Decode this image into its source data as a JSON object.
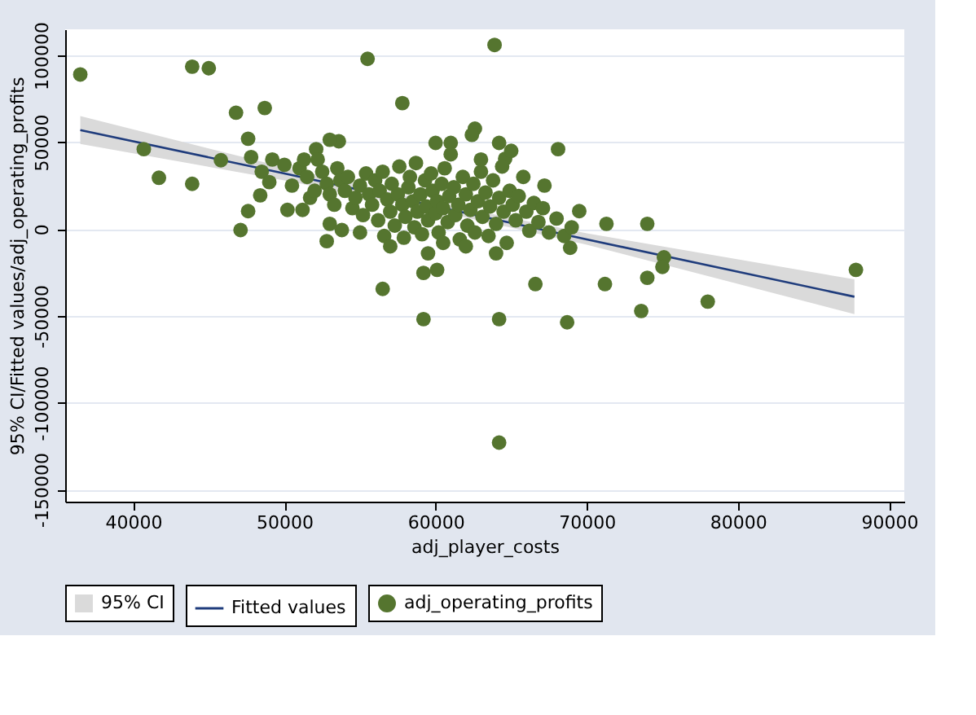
{
  "chart_data": {
    "type": "scatter",
    "xlabel": "adj_player_costs",
    "ylabel": "95% CI/Fitted values/adj_operating_profits",
    "xlim": [
      35500,
      91000
    ],
    "ylim": [
      -157000,
      115000
    ],
    "xticks": [
      40000,
      50000,
      60000,
      70000,
      80000,
      90000
    ],
    "yticks": [
      -150000,
      -100000,
      -50000,
      0,
      50000,
      100000
    ],
    "grid": "y",
    "legend": "bottom",
    "annotations": [
      "95% CI"
    ],
    "series": [
      {
        "name": "Fitted values",
        "type": "line",
        "color": "#1f3c7c",
        "x": [
          36500,
          50000,
          60000,
          70000,
          87700
        ],
        "values": [
          57000,
          32000,
          13000,
          -6000,
          -39000
        ],
        "lower": [
          49000,
          28000,
          10500,
          -9000,
          -49000
        ],
        "upper": [
          65000,
          35500,
          15300,
          -2500,
          -29000
        ]
      },
      {
        "name": "adj_operating_profits",
        "type": "scatter",
        "color": "#55752f",
        "marker": "circle",
        "x": [
          36500,
          43900,
          45000,
          55500,
          63900,
          40700,
          41700,
          43900,
          45800,
          46800,
          48700,
          57800,
          47600,
          47800,
          47100,
          47600,
          48400,
          52800,
          53800,
          56500,
          59200,
          59200,
          60100,
          64200,
          64200,
          68700,
          66600,
          71200,
          73600,
          74000,
          78000,
          87800,
          75100,
          75000,
          71300,
          74000,
          69500,
          68900,
          68100,
          64600,
          67200,
          62600,
          62400,
          64200,
          60000,
          61000,
          53600,
          52100,
          53000,
          48500,
          49000,
          49200,
          50000,
          50200,
          50500,
          51000,
          51200,
          51300,
          51500,
          51700,
          52000,
          52200,
          52500,
          52800,
          53000,
          53300,
          53500,
          53700,
          54000,
          54200,
          54500,
          54700,
          55000,
          55200,
          55400,
          55600,
          55800,
          56000,
          56200,
          56300,
          56500,
          56600,
          56800,
          57000,
          57100,
          57300,
          57500,
          57600,
          57800,
          57900,
          58000,
          58200,
          58300,
          58500,
          58600,
          58700,
          58800,
          59000,
          59100,
          59300,
          59400,
          59500,
          59700,
          59800,
          60000,
          60100,
          60200,
          60400,
          60500,
          60600,
          60800,
          60900,
          61000,
          61200,
          61300,
          61500,
          61600,
          61800,
          62000,
          62100,
          62300,
          62500,
          62600,
          62800,
          63000,
          63100,
          63300,
          63500,
          63600,
          63800,
          64000,
          64200,
          64400,
          64500,
          64700,
          64900,
          65100,
          65300,
          65500,
          65800,
          66000,
          66200,
          66500,
          66800,
          67100,
          67500,
          68000,
          68500,
          69000,
          57000,
          59500,
          62000,
          64000,
          60500,
          55000,
          53000,
          63000,
          65000
        ],
        "values": [
          89000,
          93500,
          92600,
          98000,
          106000,
          46000,
          29500,
          26000,
          39600,
          67000,
          69700,
          72500,
          52000,
          41400,
          -600,
          10300,
          19400,
          -7000,
          -600,
          -34500,
          -51900,
          -25300,
          -23500,
          -51900,
          -123000,
          -53700,
          -31700,
          -31700,
          -47200,
          -28100,
          -41800,
          -23500,
          -16300,
          -21800,
          3000,
          3000,
          10300,
          -10800,
          46000,
          40500,
          25000,
          57800,
          54200,
          49600,
          49600,
          49600,
          50500,
          46000,
          51400,
          33000,
          27000,
          40000,
          37000,
          11000,
          25000,
          35000,
          11000,
          40000,
          30000,
          18000,
          22000,
          40000,
          33000,
          26000,
          20000,
          14000,
          35000,
          28000,
          22000,
          30000,
          12000,
          18000,
          25000,
          8000,
          32000,
          20000,
          14000,
          28000,
          5000,
          22000,
          33000,
          -4000,
          17000,
          10000,
          26000,
          2000,
          20000,
          36000,
          14000,
          -5000,
          7000,
          24000,
          30000,
          16000,
          1000,
          38000,
          10000,
          20000,
          -3000,
          28000,
          13000,
          5000,
          32000,
          22000,
          9000,
          16000,
          -2000,
          26000,
          12000,
          35000,
          4000,
          19000,
          43000,
          24000,
          8000,
          14000,
          -6000,
          30000,
          20000,
          2000,
          11000,
          26000,
          -2000,
          16000,
          33000,
          7000,
          21000,
          -4000,
          13000,
          28000,
          3000,
          18000,
          36000,
          10000,
          -8000,
          22000,
          14000,
          5000,
          19000,
          30000,
          10000,
          -1000,
          15000,
          4000,
          12000,
          -2000,
          6000,
          -4000,
          1000,
          -10000,
          -14000,
          -10000,
          -14000,
          -8000,
          -2000,
          3000,
          40000,
          45000
        ]
      }
    ]
  }
}
